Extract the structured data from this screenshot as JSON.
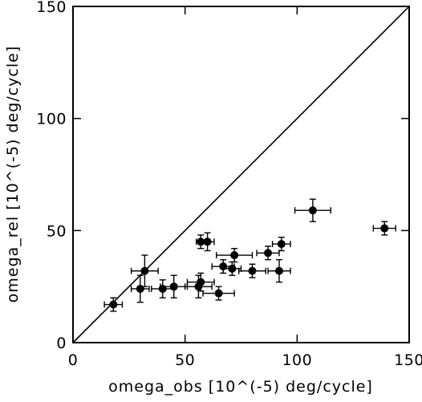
{
  "chart_data": {
    "type": "scatter",
    "title": "",
    "xlabel": "omega_obs [10^(-5) deg/cycle]",
    "ylabel": "omega_rel [10^(-5) deg/cycle]",
    "xlim": [
      0,
      150
    ],
    "ylim": [
      0,
      150
    ],
    "xticks": [
      0,
      50,
      100,
      150
    ],
    "yticks": [
      0,
      50,
      100,
      150
    ],
    "xtick_labels": [
      "0",
      "50",
      "100",
      "150"
    ],
    "ytick_labels": [
      "0",
      "50",
      "100",
      "150"
    ],
    "grid": false,
    "reference_line": {
      "description": "y = x",
      "from": [
        0,
        0
      ],
      "to": [
        150,
        150
      ]
    },
    "points": [
      {
        "x": 18,
        "y": 17,
        "xerr": 4,
        "yerr": 3
      },
      {
        "x": 30,
        "y": 24,
        "xerr": 4,
        "yerr": 6
      },
      {
        "x": 32,
        "y": 32,
        "xerr": 6,
        "yerr": 7
      },
      {
        "x": 40,
        "y": 24,
        "xerr": 5,
        "yerr": 4
      },
      {
        "x": 45,
        "y": 25,
        "xerr": 6,
        "yerr": 5
      },
      {
        "x": 56,
        "y": 25,
        "xerr": 6,
        "yerr": 5
      },
      {
        "x": 57,
        "y": 27,
        "xerr": 6,
        "yerr": 4
      },
      {
        "x": 57,
        "y": 45,
        "xerr": 2,
        "yerr": 3
      },
      {
        "x": 60,
        "y": 45,
        "xerr": 3,
        "yerr": 4
      },
      {
        "x": 65,
        "y": 22,
        "xerr": 7,
        "yerr": 3
      },
      {
        "x": 67,
        "y": 34,
        "xerr": 5,
        "yerr": 3
      },
      {
        "x": 71,
        "y": 33,
        "xerr": 4,
        "yerr": 3
      },
      {
        "x": 72,
        "y": 39,
        "xerr": 8,
        "yerr": 3
      },
      {
        "x": 80,
        "y": 32,
        "xerr": 6,
        "yerr": 3
      },
      {
        "x": 87,
        "y": 40,
        "xerr": 5,
        "yerr": 3
      },
      {
        "x": 92,
        "y": 32,
        "xerr": 5,
        "yerr": 5
      },
      {
        "x": 93,
        "y": 44,
        "xerr": 4,
        "yerr": 3
      },
      {
        "x": 107,
        "y": 59,
        "xerr": 8,
        "yerr": 5
      },
      {
        "x": 139,
        "y": 51,
        "xerr": 5,
        "yerr": 3
      }
    ]
  }
}
